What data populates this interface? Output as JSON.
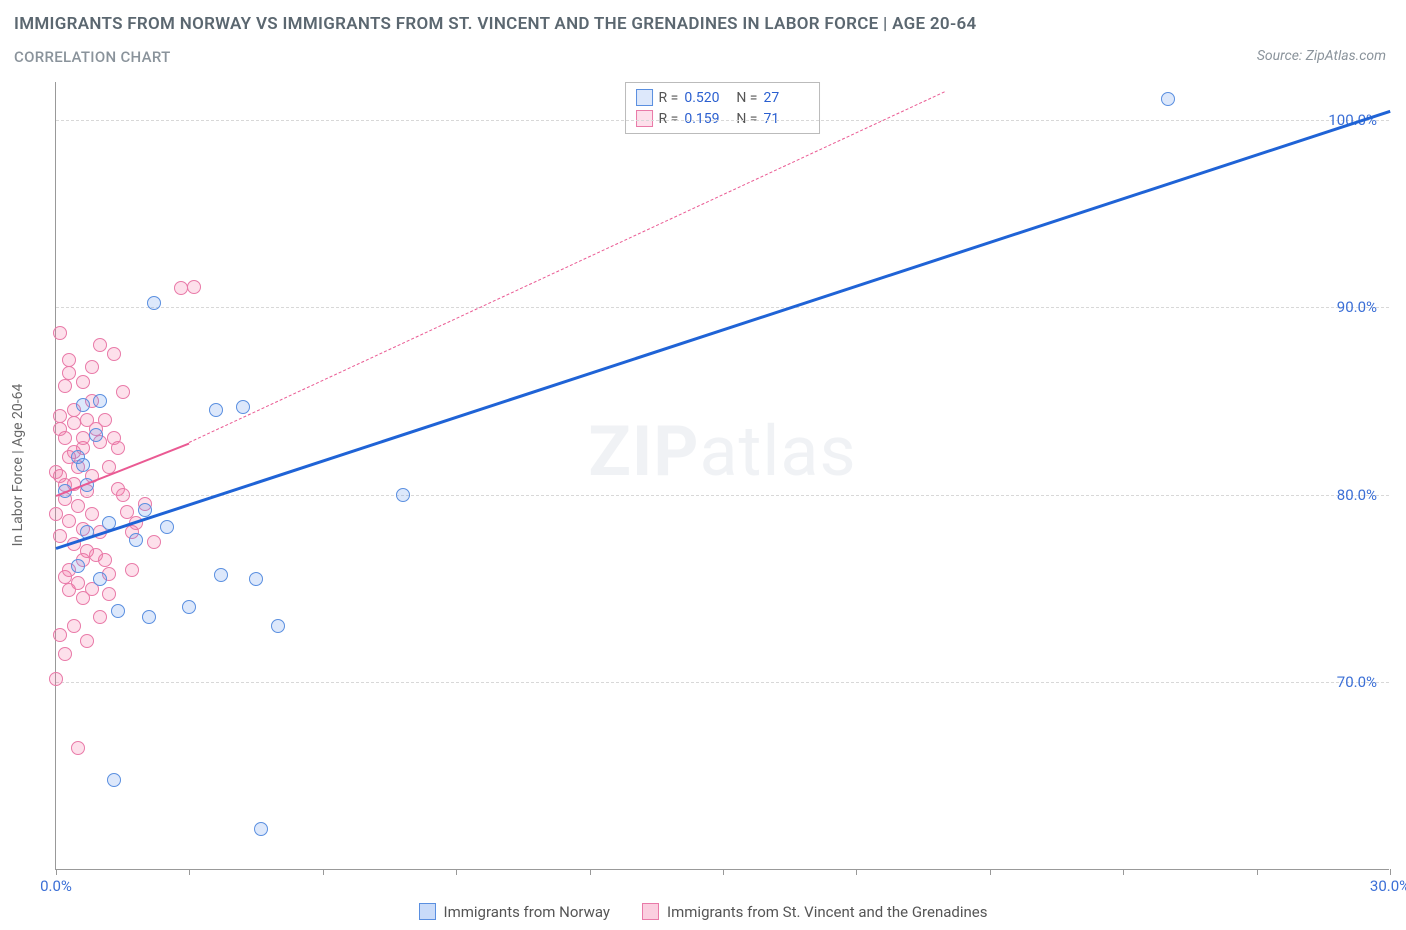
{
  "title": "IMMIGRANTS FROM NORWAY VS IMMIGRANTS FROM ST. VINCENT AND THE GRENADINES IN LABOR FORCE | AGE 20-64",
  "subtitle": "CORRELATION CHART",
  "source_label": "Source: ZipAtlas.com",
  "yaxis_label": "In Labor Force | Age 20-64",
  "watermark_bold": "ZIP",
  "watermark_light": "atlas",
  "chart": {
    "type": "scatter",
    "xlim": [
      0,
      30
    ],
    "ylim": [
      60,
      102
    ],
    "xticks": [
      0,
      3,
      6,
      9,
      12,
      15,
      18,
      21,
      24,
      27,
      30
    ],
    "xtick_labels": {
      "0": "0.0%",
      "30": "30.0%"
    },
    "yticks": [
      70,
      80,
      90,
      100
    ],
    "ytick_labels": {
      "70": "70.0%",
      "80": "80.0%",
      "90": "90.0%",
      "100": "100.0%"
    },
    "background_color": "#ffffff",
    "grid_color": "#d8d8d8",
    "axis_color": "#999999"
  },
  "series": [
    {
      "name": "Immigrants from Norway",
      "key": "norway",
      "marker_fill": "rgba(99,151,238,0.22)",
      "marker_stroke": "#5a8fe0",
      "marker_size": 14,
      "trend_color": "#1f63d6",
      "trend_width": 3,
      "trend_dash": "solid",
      "trend_from": [
        0,
        77.2
      ],
      "trend_to": [
        30,
        100.5
      ],
      "R": "0.520",
      "N": "27",
      "points": [
        [
          25.0,
          101.1
        ],
        [
          2.2,
          90.2
        ],
        [
          0.7,
          80.5
        ],
        [
          0.5,
          82.0
        ],
        [
          1.2,
          78.5
        ],
        [
          1.8,
          77.6
        ],
        [
          2.0,
          79.2
        ],
        [
          2.5,
          78.3
        ],
        [
          3.6,
          84.5
        ],
        [
          4.2,
          84.7
        ],
        [
          0.5,
          76.2
        ],
        [
          1.0,
          75.5
        ],
        [
          3.0,
          74.0
        ],
        [
          3.7,
          75.7
        ],
        [
          1.4,
          73.8
        ],
        [
          2.1,
          73.5
        ],
        [
          5.0,
          73.0
        ],
        [
          7.8,
          80.0
        ],
        [
          4.5,
          75.5
        ],
        [
          0.6,
          84.8
        ],
        [
          0.6,
          81.6
        ],
        [
          1.3,
          64.8
        ],
        [
          4.6,
          62.2
        ],
        [
          1.0,
          85.0
        ],
        [
          0.2,
          80.2
        ],
        [
          0.7,
          78.0
        ],
        [
          0.9,
          83.2
        ]
      ]
    },
    {
      "name": "Immigrants from St. Vincent and the Grenadines",
      "key": "svg",
      "marker_fill": "rgba(244,114,162,0.22)",
      "marker_stroke": "#e97aa8",
      "marker_size": 14,
      "trend_color": "#ea5a93",
      "trend_width": 2,
      "trend_dash": "solid",
      "trend_from": [
        0,
        80.0
      ],
      "trend_to": [
        3.0,
        82.8
      ],
      "trend2_color": "#ea5a93",
      "trend2_dash": "5,5",
      "trend2_from": [
        3.0,
        82.8
      ],
      "trend2_to": [
        20.0,
        101.5
      ],
      "R": "0.159",
      "N": "71",
      "points": [
        [
          0.1,
          88.6
        ],
        [
          0.3,
          86.5
        ],
        [
          0.6,
          86.0
        ],
        [
          0.8,
          85.0
        ],
        [
          0.1,
          84.2
        ],
        [
          0.4,
          83.8
        ],
        [
          0.2,
          83.0
        ],
        [
          0.6,
          82.5
        ],
        [
          0.3,
          82.0
        ],
        [
          0.5,
          81.5
        ],
        [
          0.1,
          81.0
        ],
        [
          0.4,
          80.6
        ],
        [
          0.7,
          80.2
        ],
        [
          0.2,
          79.8
        ],
        [
          0.5,
          79.4
        ],
        [
          0.8,
          79.0
        ],
        [
          0.3,
          78.6
        ],
        [
          0.6,
          78.2
        ],
        [
          0.1,
          77.8
        ],
        [
          0.4,
          77.4
        ],
        [
          0.7,
          77.0
        ],
        [
          1.0,
          82.8
        ],
        [
          1.2,
          81.5
        ],
        [
          1.4,
          80.3
        ],
        [
          1.6,
          79.1
        ],
        [
          1.0,
          78.0
        ],
        [
          1.5,
          85.5
        ],
        [
          1.3,
          83.0
        ],
        [
          1.7,
          78.0
        ],
        [
          1.1,
          76.5
        ],
        [
          0.2,
          75.6
        ],
        [
          0.5,
          75.3
        ],
        [
          0.8,
          75.0
        ],
        [
          1.2,
          74.7
        ],
        [
          0.3,
          74.9
        ],
        [
          0.6,
          74.5
        ],
        [
          0.4,
          73.0
        ],
        [
          0.1,
          72.5
        ],
        [
          0.7,
          72.2
        ],
        [
          0.0,
          70.2
        ],
        [
          0.2,
          71.5
        ],
        [
          2.8,
          91.0
        ],
        [
          3.1,
          91.1
        ],
        [
          1.0,
          88.0
        ],
        [
          1.3,
          87.5
        ],
        [
          0.5,
          66.5
        ],
        [
          0.2,
          80.5
        ],
        [
          0.4,
          84.5
        ],
        [
          0.9,
          83.5
        ],
        [
          1.1,
          84.0
        ],
        [
          0.7,
          84.0
        ],
        [
          1.4,
          82.5
        ],
        [
          0.8,
          81.0
        ],
        [
          1.5,
          80.0
        ],
        [
          1.8,
          78.5
        ],
        [
          2.0,
          79.5
        ],
        [
          2.2,
          77.5
        ],
        [
          0.3,
          76.0
        ],
        [
          0.6,
          76.5
        ],
        [
          0.9,
          76.8
        ],
        [
          1.2,
          75.8
        ],
        [
          0.1,
          83.5
        ],
        [
          0.4,
          82.3
        ],
        [
          0.0,
          81.2
        ],
        [
          0.0,
          79.0
        ],
        [
          0.2,
          85.8
        ],
        [
          0.8,
          86.8
        ],
        [
          0.3,
          87.2
        ],
        [
          0.6,
          83.0
        ],
        [
          1.7,
          76.0
        ],
        [
          1.0,
          73.5
        ]
      ]
    }
  ],
  "legend_top": {
    "r_label": "R =",
    "n_label": "N ="
  },
  "bottom_legend": {
    "items": [
      {
        "swatch_fill": "rgba(99,151,238,0.35)",
        "swatch_border": "#5a8fe0",
        "label": "Immigrants from Norway"
      },
      {
        "swatch_fill": "rgba(244,114,162,0.35)",
        "swatch_border": "#e97aa8",
        "label": "Immigrants from St. Vincent and the Grenadines"
      }
    ]
  }
}
